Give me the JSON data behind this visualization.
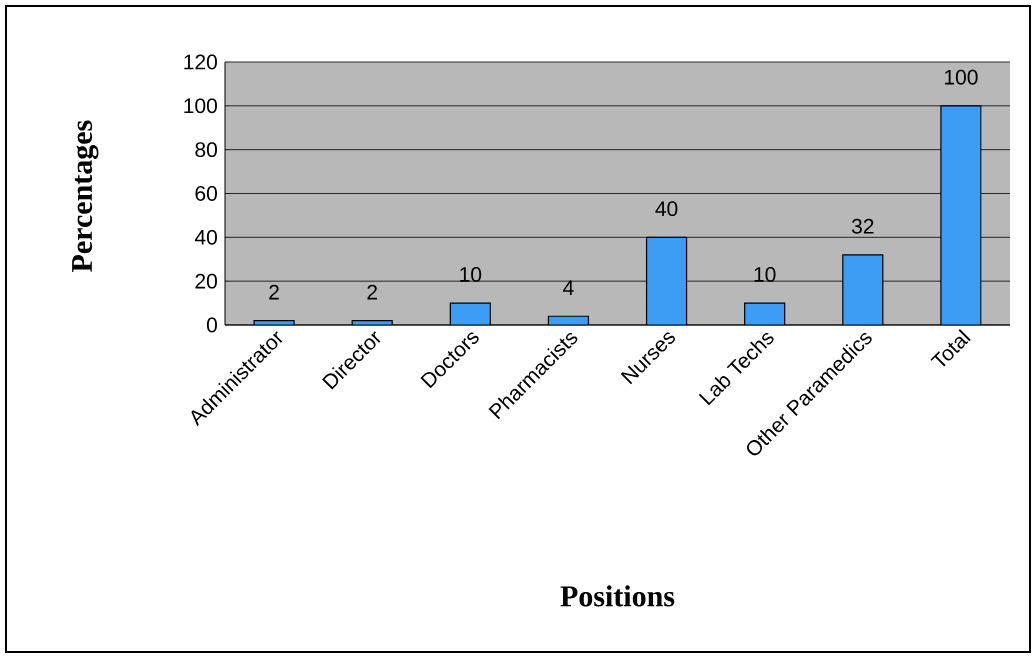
{
  "chart_data": {
    "type": "bar",
    "xlabel": "Positions",
    "ylabel": "Percentages",
    "categories": [
      "Administrator",
      "Director",
      "Doctors",
      "Pharmacists",
      "Nurses",
      "Lab Techs",
      "Other Paramedics",
      "Total"
    ],
    "values": [
      2,
      2,
      10,
      4,
      40,
      10,
      32,
      100
    ],
    "color": "#3d9df5",
    "ylim": [
      0,
      120
    ],
    "yticks": [
      0,
      20,
      40,
      60,
      80,
      100,
      120
    ],
    "grid": "y",
    "data_labels": true
  }
}
